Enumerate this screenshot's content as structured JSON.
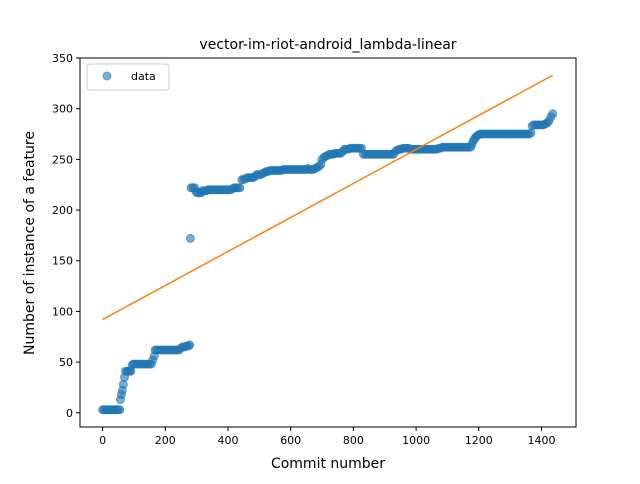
{
  "chart_data": {
    "type": "scatter",
    "title": "vector-im-riot-android_lambda-linear",
    "xlabel": "Commit number",
    "ylabel": "Number of instance of a feature",
    "xlim": [
      -72,
      1510
    ],
    "ylim": [
      -14,
      350
    ],
    "xticks": [
      0,
      200,
      400,
      600,
      800,
      1000,
      1200,
      1400
    ],
    "yticks": [
      0,
      50,
      100,
      150,
      200,
      250,
      300,
      350
    ],
    "grid": false,
    "legend": {
      "placement": "top-left",
      "entries": [
        "data"
      ]
    },
    "colors": {
      "data": "#1f77b4",
      "fit": "#ff7f0e"
    },
    "series": [
      {
        "name": "data",
        "kind": "scatter",
        "steps": [
          [
            0,
            3
          ],
          [
            5,
            3
          ],
          [
            10,
            3
          ],
          [
            15,
            3
          ],
          [
            20,
            3
          ],
          [
            25,
            3
          ],
          [
            30,
            3
          ],
          [
            35,
            3
          ],
          [
            40,
            3
          ],
          [
            45,
            3
          ],
          [
            50,
            3
          ],
          [
            55,
            3
          ],
          [
            57,
            13
          ],
          [
            60,
            18
          ],
          [
            63,
            22
          ],
          [
            66,
            28
          ],
          [
            70,
            35
          ],
          [
            73,
            41
          ],
          [
            78,
            41
          ],
          [
            82,
            41
          ],
          [
            86,
            41
          ],
          [
            90,
            41
          ],
          [
            94,
            47
          ],
          [
            98,
            48
          ],
          [
            102,
            48
          ],
          [
            108,
            48
          ],
          [
            114,
            48
          ],
          [
            120,
            48
          ],
          [
            126,
            48
          ],
          [
            132,
            48
          ],
          [
            138,
            48
          ],
          [
            144,
            48
          ],
          [
            150,
            48
          ],
          [
            155,
            48
          ],
          [
            160,
            52
          ],
          [
            165,
            56
          ],
          [
            168,
            62
          ],
          [
            172,
            62
          ],
          [
            178,
            62
          ],
          [
            184,
            62
          ],
          [
            190,
            62
          ],
          [
            196,
            62
          ],
          [
            202,
            62
          ],
          [
            208,
            62
          ],
          [
            214,
            62
          ],
          [
            220,
            62
          ],
          [
            226,
            62
          ],
          [
            232,
            62
          ],
          [
            238,
            62
          ],
          [
            244,
            62
          ],
          [
            250,
            64
          ],
          [
            256,
            65
          ],
          [
            262,
            65
          ],
          [
            268,
            66
          ],
          [
            274,
            66
          ],
          [
            278,
            67
          ],
          [
            280,
            172
          ],
          [
            282,
            222
          ],
          [
            288,
            222
          ],
          [
            294,
            222
          ],
          [
            298,
            218
          ],
          [
            302,
            217
          ],
          [
            308,
            217
          ],
          [
            314,
            217
          ],
          [
            318,
            219
          ],
          [
            324,
            219
          ],
          [
            330,
            219
          ],
          [
            336,
            220
          ],
          [
            342,
            220
          ],
          [
            348,
            220
          ],
          [
            354,
            220
          ],
          [
            360,
            220
          ],
          [
            366,
            220
          ],
          [
            372,
            220
          ],
          [
            378,
            220
          ],
          [
            384,
            220
          ],
          [
            390,
            220
          ],
          [
            396,
            220
          ],
          [
            402,
            220
          ],
          [
            408,
            220
          ],
          [
            414,
            221
          ],
          [
            420,
            222
          ],
          [
            426,
            222
          ],
          [
            432,
            222
          ],
          [
            438,
            222
          ],
          [
            444,
            230
          ],
          [
            450,
            230
          ],
          [
            456,
            231
          ],
          [
            462,
            232
          ],
          [
            468,
            232
          ],
          [
            474,
            232
          ],
          [
            480,
            232
          ],
          [
            486,
            233
          ],
          [
            492,
            235
          ],
          [
            498,
            235
          ],
          [
            504,
            235
          ],
          [
            510,
            236
          ],
          [
            516,
            237
          ],
          [
            522,
            238
          ],
          [
            528,
            238
          ],
          [
            534,
            239
          ],
          [
            540,
            239
          ],
          [
            546,
            239
          ],
          [
            552,
            239
          ],
          [
            558,
            239
          ],
          [
            564,
            239
          ],
          [
            570,
            239
          ],
          [
            576,
            240
          ],
          [
            582,
            240
          ],
          [
            588,
            240
          ],
          [
            594,
            240
          ],
          [
            600,
            240
          ],
          [
            606,
            240
          ],
          [
            612,
            240
          ],
          [
            618,
            240
          ],
          [
            624,
            240
          ],
          [
            630,
            240
          ],
          [
            636,
            240
          ],
          [
            642,
            240
          ],
          [
            648,
            240
          ],
          [
            654,
            241
          ],
          [
            660,
            240
          ],
          [
            666,
            240
          ],
          [
            672,
            240
          ],
          [
            678,
            241
          ],
          [
            684,
            242
          ],
          [
            690,
            243
          ],
          [
            696,
            245
          ],
          [
            700,
            250
          ],
          [
            706,
            252
          ],
          [
            712,
            253
          ],
          [
            718,
            254
          ],
          [
            724,
            255
          ],
          [
            730,
            255
          ],
          [
            736,
            255
          ],
          [
            742,
            256
          ],
          [
            748,
            256
          ],
          [
            754,
            256
          ],
          [
            760,
            256
          ],
          [
            766,
            258
          ],
          [
            772,
            260
          ],
          [
            778,
            260
          ],
          [
            784,
            260
          ],
          [
            790,
            261
          ],
          [
            796,
            261
          ],
          [
            802,
            261
          ],
          [
            808,
            261
          ],
          [
            814,
            261
          ],
          [
            820,
            261
          ],
          [
            826,
            261
          ],
          [
            832,
            255
          ],
          [
            838,
            255
          ],
          [
            844,
            255
          ],
          [
            850,
            255
          ],
          [
            856,
            255
          ],
          [
            862,
            255
          ],
          [
            868,
            255
          ],
          [
            874,
            255
          ],
          [
            880,
            255
          ],
          [
            886,
            255
          ],
          [
            892,
            255
          ],
          [
            898,
            255
          ],
          [
            904,
            255
          ],
          [
            910,
            255
          ],
          [
            916,
            255
          ],
          [
            922,
            255
          ],
          [
            928,
            255
          ],
          [
            934,
            258
          ],
          [
            940,
            259
          ],
          [
            946,
            260
          ],
          [
            952,
            260
          ],
          [
            958,
            261
          ],
          [
            964,
            261
          ],
          [
            970,
            261
          ],
          [
            976,
            261
          ],
          [
            982,
            260
          ],
          [
            988,
            260
          ],
          [
            994,
            260
          ],
          [
            1000,
            260
          ],
          [
            1006,
            260
          ],
          [
            1012,
            260
          ],
          [
            1018,
            260
          ],
          [
            1024,
            260
          ],
          [
            1030,
            260
          ],
          [
            1036,
            260
          ],
          [
            1042,
            260
          ],
          [
            1048,
            260
          ],
          [
            1054,
            260
          ],
          [
            1060,
            260
          ],
          [
            1066,
            260
          ],
          [
            1072,
            261
          ],
          [
            1078,
            261
          ],
          [
            1084,
            262
          ],
          [
            1090,
            262
          ],
          [
            1096,
            262
          ],
          [
            1102,
            262
          ],
          [
            1108,
            262
          ],
          [
            1114,
            262
          ],
          [
            1120,
            262
          ],
          [
            1126,
            262
          ],
          [
            1132,
            262
          ],
          [
            1138,
            262
          ],
          [
            1144,
            262
          ],
          [
            1150,
            262
          ],
          [
            1156,
            262
          ],
          [
            1162,
            262
          ],
          [
            1168,
            262
          ],
          [
            1174,
            262
          ],
          [
            1178,
            265
          ],
          [
            1182,
            268
          ],
          [
            1186,
            270
          ],
          [
            1190,
            272
          ],
          [
            1194,
            273
          ],
          [
            1198,
            274
          ],
          [
            1204,
            275
          ],
          [
            1210,
            275
          ],
          [
            1216,
            275
          ],
          [
            1222,
            275
          ],
          [
            1228,
            275
          ],
          [
            1234,
            275
          ],
          [
            1240,
            275
          ],
          [
            1246,
            275
          ],
          [
            1252,
            275
          ],
          [
            1258,
            275
          ],
          [
            1264,
            275
          ],
          [
            1270,
            275
          ],
          [
            1276,
            275
          ],
          [
            1282,
            275
          ],
          [
            1288,
            275
          ],
          [
            1294,
            275
          ],
          [
            1300,
            275
          ],
          [
            1306,
            275
          ],
          [
            1312,
            275
          ],
          [
            1318,
            275
          ],
          [
            1324,
            275
          ],
          [
            1330,
            275
          ],
          [
            1336,
            275
          ],
          [
            1342,
            275
          ],
          [
            1348,
            275
          ],
          [
            1354,
            275
          ],
          [
            1360,
            275
          ],
          [
            1366,
            276
          ],
          [
            1370,
            283
          ],
          [
            1376,
            284
          ],
          [
            1382,
            284
          ],
          [
            1388,
            284
          ],
          [
            1394,
            284
          ],
          [
            1400,
            284
          ],
          [
            1406,
            284
          ],
          [
            1412,
            285
          ],
          [
            1418,
            286
          ],
          [
            1424,
            288
          ],
          [
            1430,
            292
          ],
          [
            1436,
            295
          ]
        ]
      },
      {
        "name": "",
        "kind": "line",
        "points": [
          [
            0,
            92
          ],
          [
            1436,
            333
          ]
        ]
      }
    ]
  }
}
